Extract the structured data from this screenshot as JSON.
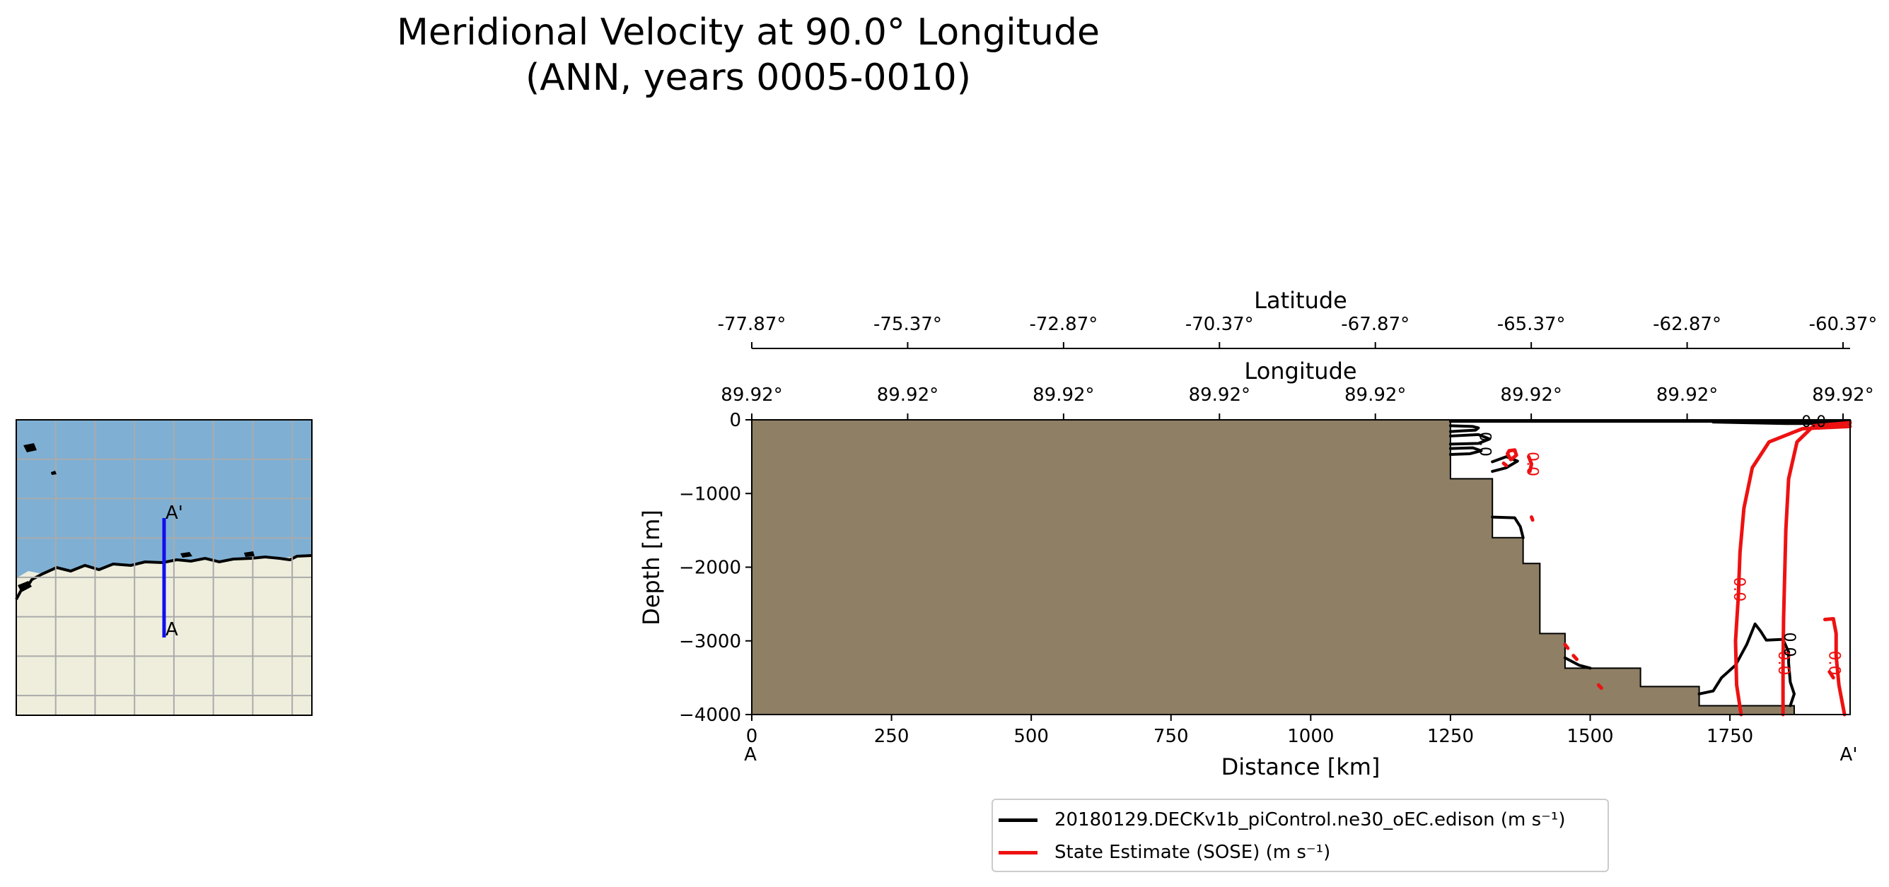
{
  "title_line1": "Meridional Velocity at 90.0° Longitude",
  "title_line2": "(ANN, years 0005-0010)",
  "colors": {
    "land": "#8e7f65",
    "model": "#000000",
    "obs": "#ee1111",
    "transect": "#1010ee",
    "map_ocean": "#7fb0d4",
    "map_land": "#efeedd"
  },
  "inset_map": {
    "start_label": "A",
    "end_label": "A'"
  },
  "chart_data": {
    "type": "contour",
    "xlabel": "Distance [km]",
    "ylabel": "Depth [m]",
    "xlim": [
      0,
      1965
    ],
    "ylim": [
      -4000,
      0
    ],
    "x_ticks": [
      0,
      250,
      500,
      750,
      1000,
      1250,
      1500,
      1750
    ],
    "y_ticks": [
      0,
      -1000,
      -2000,
      -3000,
      -4000
    ],
    "y_tick_labels": [
      "0",
      "−1000",
      "−2000",
      "−3000",
      "−4000"
    ],
    "start_label": "A",
    "end_label": "A'",
    "latitude_axis": {
      "label": "Latitude",
      "ticks": [
        "-77.87°",
        "-75.37°",
        "-72.87°",
        "-70.37°",
        "-67.87°",
        "-65.37°",
        "-62.87°",
        "-60.37°"
      ]
    },
    "longitude_axis": {
      "label": "Longitude",
      "ticks": [
        "89.92°",
        "89.92°",
        "89.92°",
        "89.92°",
        "89.92°",
        "89.92°",
        "89.92°",
        "89.92°"
      ]
    },
    "bathymetry": [
      [
        0,
        0
      ],
      [
        1250,
        0
      ],
      [
        1250,
        -800
      ],
      [
        1325,
        -800
      ],
      [
        1325,
        -1600
      ],
      [
        1380,
        -1600
      ],
      [
        1380,
        -1950
      ],
      [
        1410,
        -1950
      ],
      [
        1410,
        -2900
      ],
      [
        1455,
        -2900
      ],
      [
        1455,
        -3370
      ],
      [
        1590,
        -3370
      ],
      [
        1590,
        -3620
      ],
      [
        1695,
        -3620
      ],
      [
        1695,
        -3880
      ],
      [
        1865,
        -3880
      ],
      [
        1865,
        -4000
      ],
      [
        0,
        -4000
      ]
    ],
    "contour_label": "0.0",
    "series": [
      {
        "name": "20180129.DECKv1b_piControl.ne30_oEC.edison (m s⁻¹)",
        "color": "#000000",
        "lines": [
          [
            [
              1250,
              -20
            ],
            [
              1965,
              -20
            ]
          ],
          [
            [
              1250,
              -80
            ],
            [
              1290,
              -90
            ],
            [
              1300,
              -110
            ],
            [
              1295,
              -140
            ],
            [
              1270,
              -150
            ],
            [
              1250,
              -160
            ]
          ],
          [
            [
              1250,
              -220
            ],
            [
              1300,
              -200
            ],
            [
              1320,
              -260
            ],
            [
              1300,
              -320
            ],
            [
              1250,
              -330
            ]
          ],
          [
            [
              1250,
              -390
            ],
            [
              1290,
              -380
            ],
            [
              1305,
              -420
            ],
            [
              1285,
              -460
            ],
            [
              1250,
              -470
            ]
          ],
          [
            [
              1325,
              -570
            ],
            [
              1350,
              -500
            ],
            [
              1370,
              -560
            ],
            [
              1350,
              -650
            ],
            [
              1325,
              -700
            ]
          ],
          [
            [
              1325,
              -1320
            ],
            [
              1365,
              -1330
            ],
            [
              1375,
              -1450
            ],
            [
              1380,
              -1600
            ]
          ],
          [
            [
              1455,
              -3230
            ],
            [
              1480,
              -3330
            ],
            [
              1500,
              -3370
            ]
          ],
          [
            [
              1695,
              -3720
            ],
            [
              1720,
              -3680
            ],
            [
              1735,
              -3500
            ],
            [
              1760,
              -3330
            ],
            [
              1780,
              -3050
            ],
            [
              1795,
              -2770
            ],
            [
              1805,
              -2870
            ],
            [
              1815,
              -2990
            ],
            [
              1845,
              -2980
            ],
            [
              1855,
              -3150
            ],
            [
              1855,
              -3300
            ],
            [
              1858,
              -3560
            ],
            [
              1865,
              -3720
            ],
            [
              1858,
              -3880
            ]
          ],
          [
            [
              1720,
              -30
            ],
            [
              1780,
              -40
            ],
            [
              1850,
              -50
            ],
            [
              1965,
              -50
            ]
          ]
        ]
      },
      {
        "name": "State Estimate (SOSE) (m s⁻¹)",
        "color": "#ee1111",
        "lines": [
          [
            [
              1965,
              -40
            ],
            [
              1900,
              -80
            ],
            [
              1870,
              -300
            ],
            [
              1855,
              -800
            ],
            [
              1850,
              -1500
            ],
            [
              1848,
              -2100
            ],
            [
              1846,
              -2700
            ],
            [
              1845,
              -3300
            ],
            [
              1845,
              -4000
            ]
          ],
          [
            [
              1965,
              -90
            ],
            [
              1880,
              -120
            ],
            [
              1820,
              -300
            ],
            [
              1790,
              -650
            ],
            [
              1775,
              -1200
            ],
            [
              1768,
              -1800
            ],
            [
              1765,
              -2400
            ],
            [
              1760,
              -3000
            ],
            [
              1762,
              -3600
            ],
            [
              1770,
              -4000
            ]
          ],
          [
            [
              1920,
              -2710
            ],
            [
              1935,
              -2700
            ],
            [
              1940,
              -2900
            ],
            [
              1940,
              -3200
            ],
            [
              1945,
              -3600
            ],
            [
              1955,
              -4000
            ]
          ],
          [
            [
              1928,
              -3420
            ],
            [
              1935,
              -3500
            ]
          ],
          [
            [
              1355,
              -420
            ],
            [
              1365,
              -410
            ],
            [
              1368,
              -480
            ],
            [
              1358,
              -540
            ],
            [
              1352,
              -460
            ],
            [
              1355,
              -420
            ]
          ],
          [
            [
              1390,
              -500
            ],
            [
              1395,
              -600
            ],
            [
              1392,
              -700
            ]
          ],
          [
            [
              1395,
              -1320
            ],
            [
              1397,
              -1360
            ]
          ],
          [
            [
              1345,
              -590
            ],
            [
              1350,
              -620
            ]
          ],
          [
            [
              1455,
              -3050
            ],
            [
              1460,
              -3100
            ]
          ],
          [
            [
              1470,
              -3200
            ],
            [
              1476,
              -3250
            ]
          ],
          [
            [
              1515,
              -3600
            ],
            [
              1520,
              -3640
            ]
          ]
        ]
      }
    ],
    "legend_position": "lower center"
  }
}
